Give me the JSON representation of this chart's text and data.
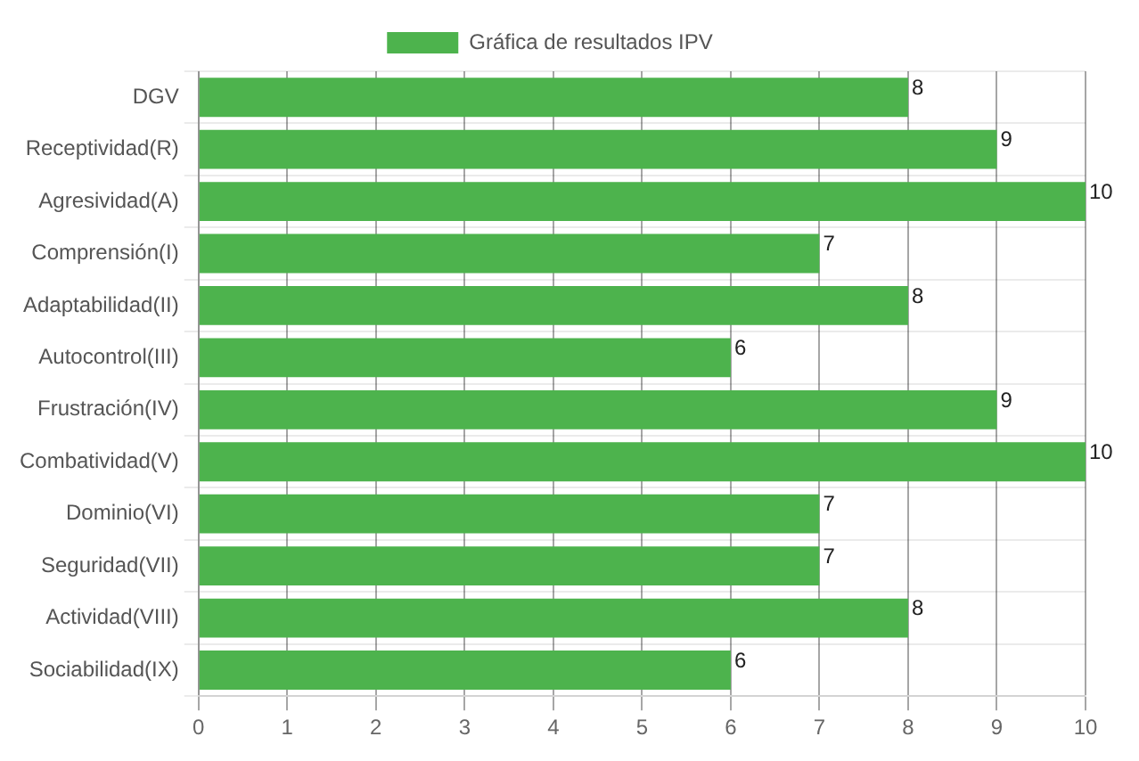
{
  "chart_data": {
    "type": "bar",
    "orientation": "horizontal",
    "categories": [
      "DGV",
      "Receptividad(R)",
      "Agresividad(A)",
      "Comprensión(I)",
      "Adaptabilidad(II)",
      "Autocontrol(III)",
      "Frustración(IV)",
      "Combatividad(V)",
      "Dominio(VI)",
      "Seguridad(VII)",
      "Actividad(VIII)",
      "Sociabilidad(IX)"
    ],
    "series": [
      {
        "name": "Gráfica de resultados IPV",
        "color": "#4db34d",
        "values": [
          8,
          9,
          10,
          7,
          8,
          6,
          9,
          10,
          7,
          7,
          8,
          6
        ]
      }
    ],
    "xlim": [
      0,
      10
    ],
    "xticks": [
      0,
      1,
      2,
      3,
      4,
      5,
      6,
      7,
      8,
      9,
      10
    ],
    "grid": true,
    "legend": "top",
    "data_labels": true
  }
}
